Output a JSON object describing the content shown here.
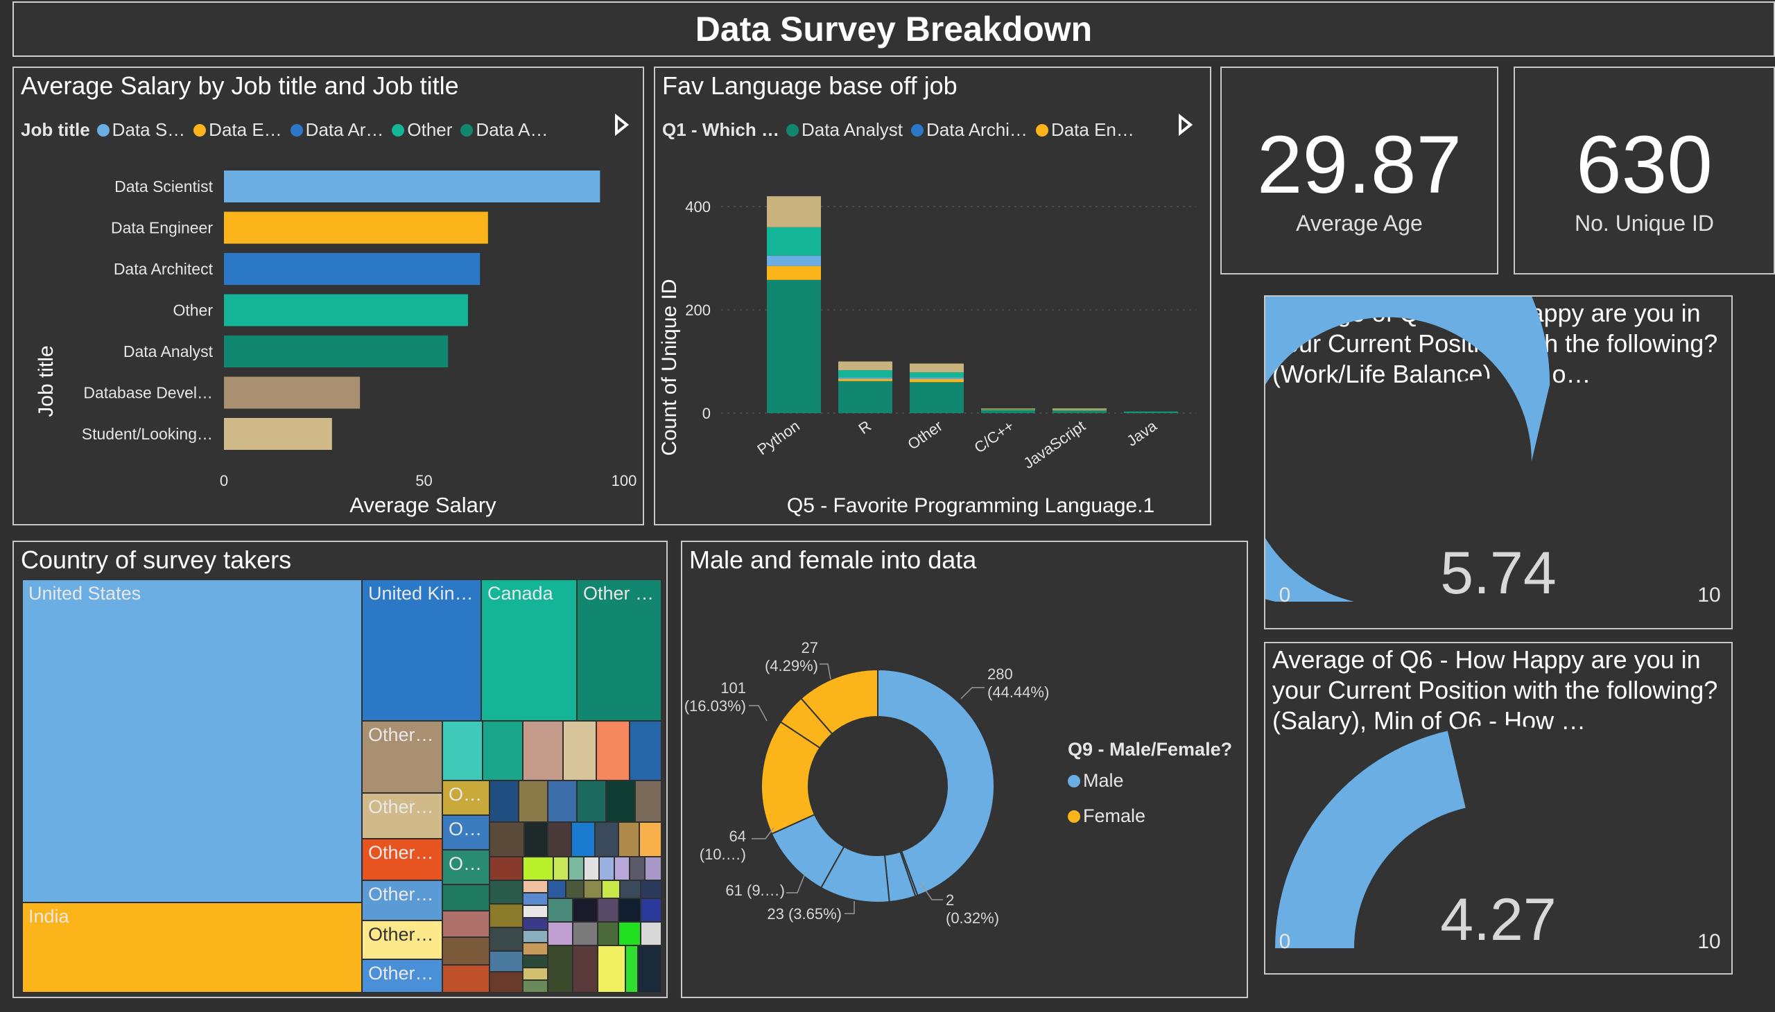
{
  "header": {
    "title": "Data Survey Breakdown"
  },
  "salary_chart": {
    "title": "Average Salary by Job title and Job title",
    "legend_title": "Job title",
    "legend": [
      {
        "label": "Data S…",
        "color": "#6aaee3"
      },
      {
        "label": "Data E…",
        "color": "#fbb41a"
      },
      {
        "label": "Data Ar…",
        "color": "#2b79c6"
      },
      {
        "label": "Other",
        "color": "#13b596"
      },
      {
        "label": "Data A…",
        "color": "#12876f"
      }
    ],
    "next_icon": "play-arrow-icon"
  },
  "language_chart": {
    "title": "Fav Language base off job",
    "legend_title": "Q1 - Which …",
    "legend": [
      {
        "label": "Data Analyst",
        "color": "#12876f"
      },
      {
        "label": "Data Archi…",
        "color": "#2b79c6"
      },
      {
        "label": "Data En…",
        "color": "#fbb41a"
      }
    ],
    "next_icon": "play-arrow-icon"
  },
  "cards": {
    "age": {
      "value": "29.87",
      "label": "Average Age"
    },
    "unique": {
      "value": "630",
      "label": "No. Unique ID"
    }
  },
  "gauge1": {
    "title": "Average of Q6 - How Happy are you in your Current Position with the following? (Work/Life Balance), Min o…",
    "value": "5.74",
    "min_label": "0",
    "max_label": "10",
    "fill_value": 5.74,
    "max_value": 10,
    "color": "#6aaee3"
  },
  "gauge2": {
    "title": "Average of Q6 - How Happy are you in your Current Position with the following? (Salary), Min of Q6 - How …",
    "value": "4.27",
    "min_label": "0",
    "max_label": "10",
    "fill_value": 4.27,
    "max_value": 10,
    "color": "#6aaee3"
  },
  "treemap": {
    "title": "Country of survey takers",
    "labels": {
      "us": "United States",
      "india": "India",
      "uk": "United Kin…",
      "canada": "Canada",
      "other1": "Other …",
      "other_a": "Other…",
      "other_b": "Other…",
      "other_c": "Other…",
      "other_d": "Other…",
      "other_e": "Other…",
      "other_f": "Other…",
      "o1": "O…",
      "o2": "O…",
      "o3": "O…"
    }
  },
  "donut": {
    "title": "Male and female into data",
    "legend_title": "Q9 - Male/Female?",
    "legend": [
      {
        "label": "Male",
        "color": "#6aaee3"
      },
      {
        "label": "Female",
        "color": "#fbb41a"
      }
    ]
  },
  "chart_data": [
    {
      "type": "bar",
      "orientation": "horizontal",
      "title": "Average Salary by Job title and Job title",
      "ylabel": "Job title",
      "xlabel": "Average Salary",
      "categories": [
        "Data Scientist",
        "Data Engineer",
        "Data Architect",
        "Other",
        "Data Analyst",
        "Database Devel…",
        "Student/Looking…"
      ],
      "values": [
        94,
        66,
        64,
        61,
        56,
        34,
        27
      ],
      "colors": [
        "#6aaee3",
        "#fbb41a",
        "#2b79c6",
        "#13b596",
        "#12876f",
        "#a89070",
        "#d1ba8a"
      ],
      "xlim": [
        0,
        100
      ],
      "xticks": [
        "0",
        "50",
        "100"
      ]
    },
    {
      "type": "bar",
      "stacked": true,
      "title": "Fav Language base off job",
      "xlabel": "Q5 - Favorite Programming Language.1",
      "ylabel": "Count of Unique ID",
      "categories": [
        "Python",
        "R",
        "Other",
        "C/C++",
        "JavaScript",
        "Java"
      ],
      "ylim": [
        0,
        420
      ],
      "yticks": [
        "0",
        "200",
        "400"
      ],
      "series": [
        {
          "name": "Data Analyst",
          "color": "#12876f",
          "values": [
            258,
            62,
            60,
            6,
            5,
            2
          ]
        },
        {
          "color": "#fbb41a",
          "values": [
            27,
            4,
            6,
            1,
            1,
            0
          ]
        },
        {
          "color": "#6aaee3",
          "values": [
            20,
            3,
            3,
            0,
            0,
            0
          ]
        },
        {
          "color": "#13b596",
          "values": [
            55,
            14,
            10,
            1,
            1,
            1
          ]
        },
        {
          "color": "#c8b27e",
          "values": [
            60,
            17,
            17,
            1,
            2,
            0
          ]
        }
      ]
    },
    {
      "type": "pie",
      "donut": true,
      "title": "Male and female into data",
      "slices": [
        {
          "value": 280,
          "label": "280",
          "pct": "(44.44%)",
          "color": "#6aaee3"
        },
        {
          "value": 2,
          "label": "2",
          "pct": "(0.32%)",
          "color": "#6aaee3"
        },
        {
          "value": 23,
          "label": "23 (3.65%)",
          "pct": "",
          "color": "#6aaee3"
        },
        {
          "value": 61,
          "label": "61 (9.…)",
          "pct": "",
          "color": "#6aaee3"
        },
        {
          "value": 64,
          "label": "64",
          "pct": "(10.…)",
          "color": "#6aaee3"
        },
        {
          "value": 101,
          "label": "101",
          "pct": "(16.03%)",
          "color": "#fbb41a"
        },
        {
          "value": 27,
          "label": "27",
          "pct": "(4.29%)",
          "color": "#fbb41a"
        },
        {
          "value": 72,
          "label": "",
          "pct": "",
          "color": "#fbb41a"
        }
      ]
    }
  ]
}
